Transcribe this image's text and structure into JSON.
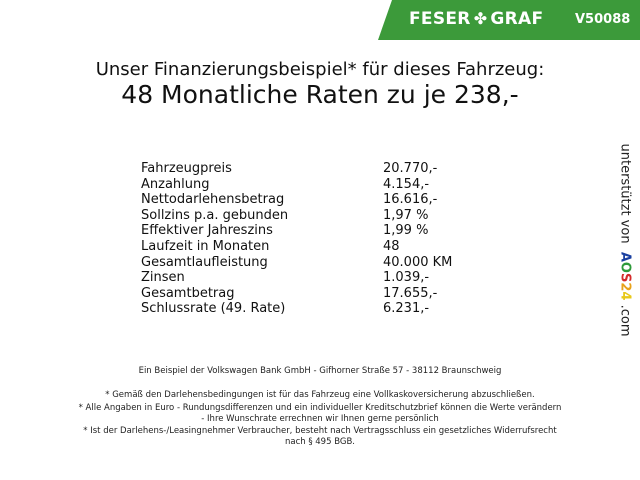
{
  "header": {
    "brand_left": "FESER",
    "brand_right": "GRAF",
    "logo_icon": "clover-icon",
    "vehicle_code": "V50088",
    "banner_color": "#3c9a3a"
  },
  "title": {
    "line1": "Unser Finanzierungsbeispiel* für dieses Fahrzeug:",
    "line2": "48 Monatliche Raten zu je 238,-"
  },
  "rows": [
    {
      "label": "Fahrzeugpreis",
      "value": "20.770,-"
    },
    {
      "label": "Anzahlung",
      "value": "4.154,-"
    },
    {
      "label": "Nettodarlehensbetrag",
      "value": "16.616,-"
    },
    {
      "label": "Sollzins p.a. gebunden",
      "value": "1,97 %"
    },
    {
      "label": "Effektiver Jahreszins",
      "value": "1,99 %"
    },
    {
      "label": "Laufzeit in Monaten",
      "value": "48"
    },
    {
      "label": "Gesamtlaufleistung",
      "value": "40.000 KM"
    },
    {
      "label": "Zinsen",
      "value": "1.039,-"
    },
    {
      "label": "Gesamtbetrag",
      "value": "17.655,-"
    },
    {
      "label": "Schlussrate (49. Rate)",
      "value": "6.231,-"
    }
  ],
  "sponsor": {
    "prefix": "unterstützt von",
    "a": "A",
    "o": "O",
    "s": "S",
    "n2": "2",
    "n4": "4",
    "suffix": ".com"
  },
  "footer": {
    "bank": "Ein Beispiel der Volkswagen Bank GmbH - Gifhorner Straße 57 - 38112 Braunschweig",
    "note1": "* Gemäß den Darlehensbedingungen ist für das Fahrzeug eine Vollkaskoversicherung abzuschließen.",
    "note2a": "* Alle Angaben in Euro - Rundungsdifferenzen und ein individueller Kreditschutzbrief können die Werte verändern",
    "note2b": "- Ihre Wunschrate errechnen wir Ihnen gerne persönlich",
    "note3a": "* Ist der Darlehens-/Leasingnehmer Verbraucher, besteht nach Vertragsschluss ein gesetzliches Widerrufsrecht",
    "note3b": "nach § 495 BGB."
  }
}
